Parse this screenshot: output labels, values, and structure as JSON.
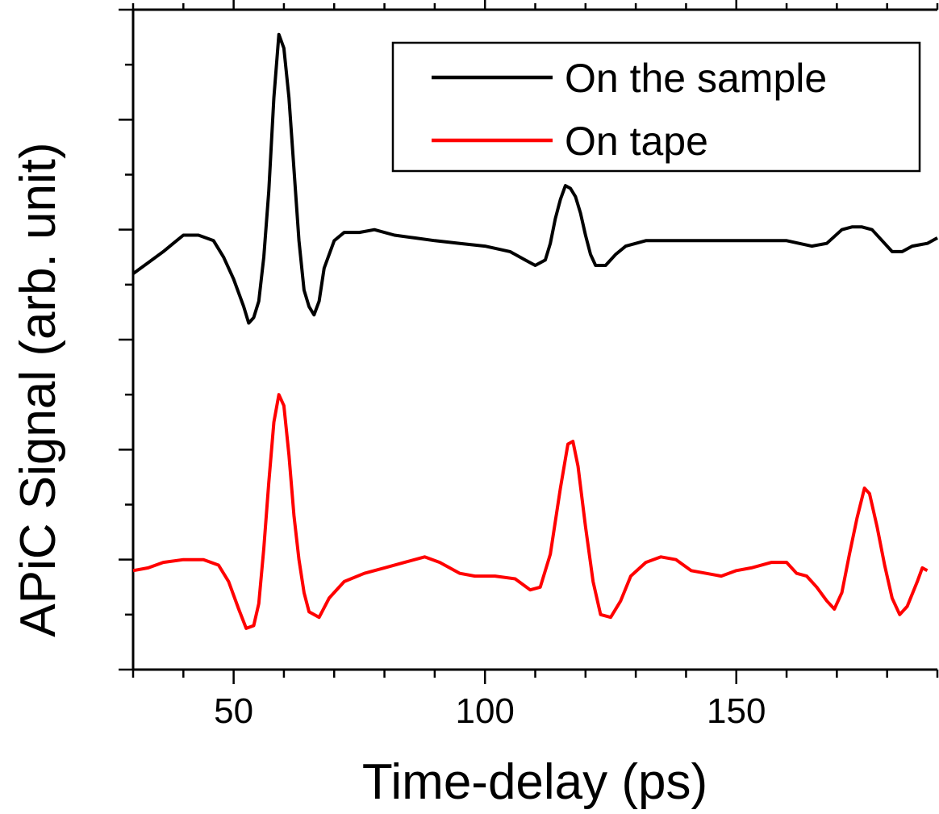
{
  "chart_data": {
    "type": "line",
    "title": "",
    "xlabel": "Time-delay (ps)",
    "ylabel": "APiC Signal (arb. unit)",
    "xlim": [
      30,
      190
    ],
    "ylim": [
      0,
      12
    ],
    "x_ticks": [
      50,
      100,
      150
    ],
    "x_minor_step": 10,
    "y_tick_labels_shown": false,
    "grid": false,
    "legend": {
      "position": "top-right",
      "entries": [
        "On the sample",
        "On tape"
      ]
    },
    "series": [
      {
        "name": "On the sample",
        "color": "#000000",
        "points": [
          [
            30,
            7.2
          ],
          [
            33,
            7.4
          ],
          [
            36,
            7.6
          ],
          [
            38,
            7.75
          ],
          [
            40,
            7.9
          ],
          [
            43,
            7.9
          ],
          [
            46,
            7.8
          ],
          [
            48,
            7.5
          ],
          [
            50,
            7.1
          ],
          [
            52,
            6.6
          ],
          [
            53,
            6.3
          ],
          [
            54,
            6.4
          ],
          [
            55,
            6.7
          ],
          [
            56,
            7.5
          ],
          [
            57,
            8.7
          ],
          [
            58,
            10.4
          ],
          [
            59,
            11.55
          ],
          [
            60,
            11.3
          ],
          [
            61,
            10.4
          ],
          [
            62,
            9.1
          ],
          [
            63,
            7.8
          ],
          [
            64,
            6.9
          ],
          [
            65,
            6.6
          ],
          [
            66,
            6.45
          ],
          [
            67,
            6.7
          ],
          [
            68,
            7.3
          ],
          [
            70,
            7.8
          ],
          [
            72,
            7.95
          ],
          [
            75,
            7.95
          ],
          [
            78,
            8.0
          ],
          [
            82,
            7.9
          ],
          [
            86,
            7.85
          ],
          [
            90,
            7.8
          ],
          [
            95,
            7.75
          ],
          [
            100,
            7.7
          ],
          [
            105,
            7.6
          ],
          [
            108,
            7.45
          ],
          [
            110,
            7.35
          ],
          [
            112,
            7.45
          ],
          [
            113,
            7.75
          ],
          [
            114,
            8.2
          ],
          [
            115,
            8.55
          ],
          [
            116,
            8.8
          ],
          [
            117,
            8.75
          ],
          [
            118,
            8.6
          ],
          [
            119,
            8.3
          ],
          [
            120,
            7.9
          ],
          [
            121,
            7.55
          ],
          [
            122,
            7.35
          ],
          [
            124,
            7.35
          ],
          [
            126,
            7.55
          ],
          [
            128,
            7.7
          ],
          [
            132,
            7.8
          ],
          [
            140,
            7.8
          ],
          [
            150,
            7.8
          ],
          [
            160,
            7.8
          ],
          [
            165,
            7.7
          ],
          [
            168,
            7.75
          ],
          [
            171,
            8.0
          ],
          [
            173,
            8.05
          ],
          [
            175,
            8.05
          ],
          [
            177,
            8.0
          ],
          [
            179,
            7.8
          ],
          [
            181,
            7.6
          ],
          [
            183,
            7.6
          ],
          [
            185,
            7.7
          ],
          [
            188,
            7.75
          ],
          [
            190,
            7.85
          ]
        ]
      },
      {
        "name": "On tape",
        "color": "#ff0000",
        "points": [
          [
            30,
            1.8
          ],
          [
            33,
            1.85
          ],
          [
            36,
            1.95
          ],
          [
            40,
            2.0
          ],
          [
            44,
            2.0
          ],
          [
            47,
            1.9
          ],
          [
            49,
            1.6
          ],
          [
            51,
            1.1
          ],
          [
            52.5,
            0.75
          ],
          [
            54,
            0.8
          ],
          [
            55,
            1.2
          ],
          [
            56,
            2.2
          ],
          [
            57,
            3.4
          ],
          [
            58,
            4.5
          ],
          [
            59,
            5.0
          ],
          [
            60,
            4.8
          ],
          [
            61,
            3.9
          ],
          [
            62,
            2.8
          ],
          [
            63,
            2.0
          ],
          [
            64,
            1.4
          ],
          [
            65,
            1.05
          ],
          [
            67,
            0.95
          ],
          [
            69,
            1.3
          ],
          [
            72,
            1.6
          ],
          [
            76,
            1.75
          ],
          [
            80,
            1.85
          ],
          [
            84,
            1.95
          ],
          [
            88,
            2.05
          ],
          [
            91,
            1.95
          ],
          [
            95,
            1.75
          ],
          [
            98,
            1.7
          ],
          [
            102,
            1.7
          ],
          [
            106,
            1.65
          ],
          [
            109,
            1.45
          ],
          [
            111,
            1.5
          ],
          [
            113,
            2.1
          ],
          [
            115,
            3.3
          ],
          [
            116.5,
            4.1
          ],
          [
            117.5,
            4.15
          ],
          [
            118.5,
            3.7
          ],
          [
            120,
            2.6
          ],
          [
            121.5,
            1.6
          ],
          [
            123,
            1.0
          ],
          [
            125,
            0.95
          ],
          [
            127,
            1.25
          ],
          [
            129,
            1.7
          ],
          [
            132,
            1.95
          ],
          [
            135,
            2.05
          ],
          [
            138,
            2.0
          ],
          [
            141,
            1.8
          ],
          [
            144,
            1.75
          ],
          [
            147,
            1.7
          ],
          [
            150,
            1.8
          ],
          [
            153,
            1.85
          ],
          [
            157,
            1.95
          ],
          [
            160,
            1.95
          ],
          [
            162,
            1.75
          ],
          [
            164,
            1.7
          ],
          [
            166,
            1.5
          ],
          [
            168,
            1.25
          ],
          [
            169.5,
            1.1
          ],
          [
            171,
            1.4
          ],
          [
            172.5,
            2.1
          ],
          [
            174,
            2.75
          ],
          [
            175.5,
            3.3
          ],
          [
            176.5,
            3.2
          ],
          [
            178,
            2.6
          ],
          [
            179.5,
            1.9
          ],
          [
            181,
            1.3
          ],
          [
            182.5,
            1.0
          ],
          [
            184,
            1.15
          ],
          [
            186,
            1.6
          ],
          [
            187,
            1.85
          ],
          [
            188,
            1.8
          ]
        ]
      }
    ]
  }
}
